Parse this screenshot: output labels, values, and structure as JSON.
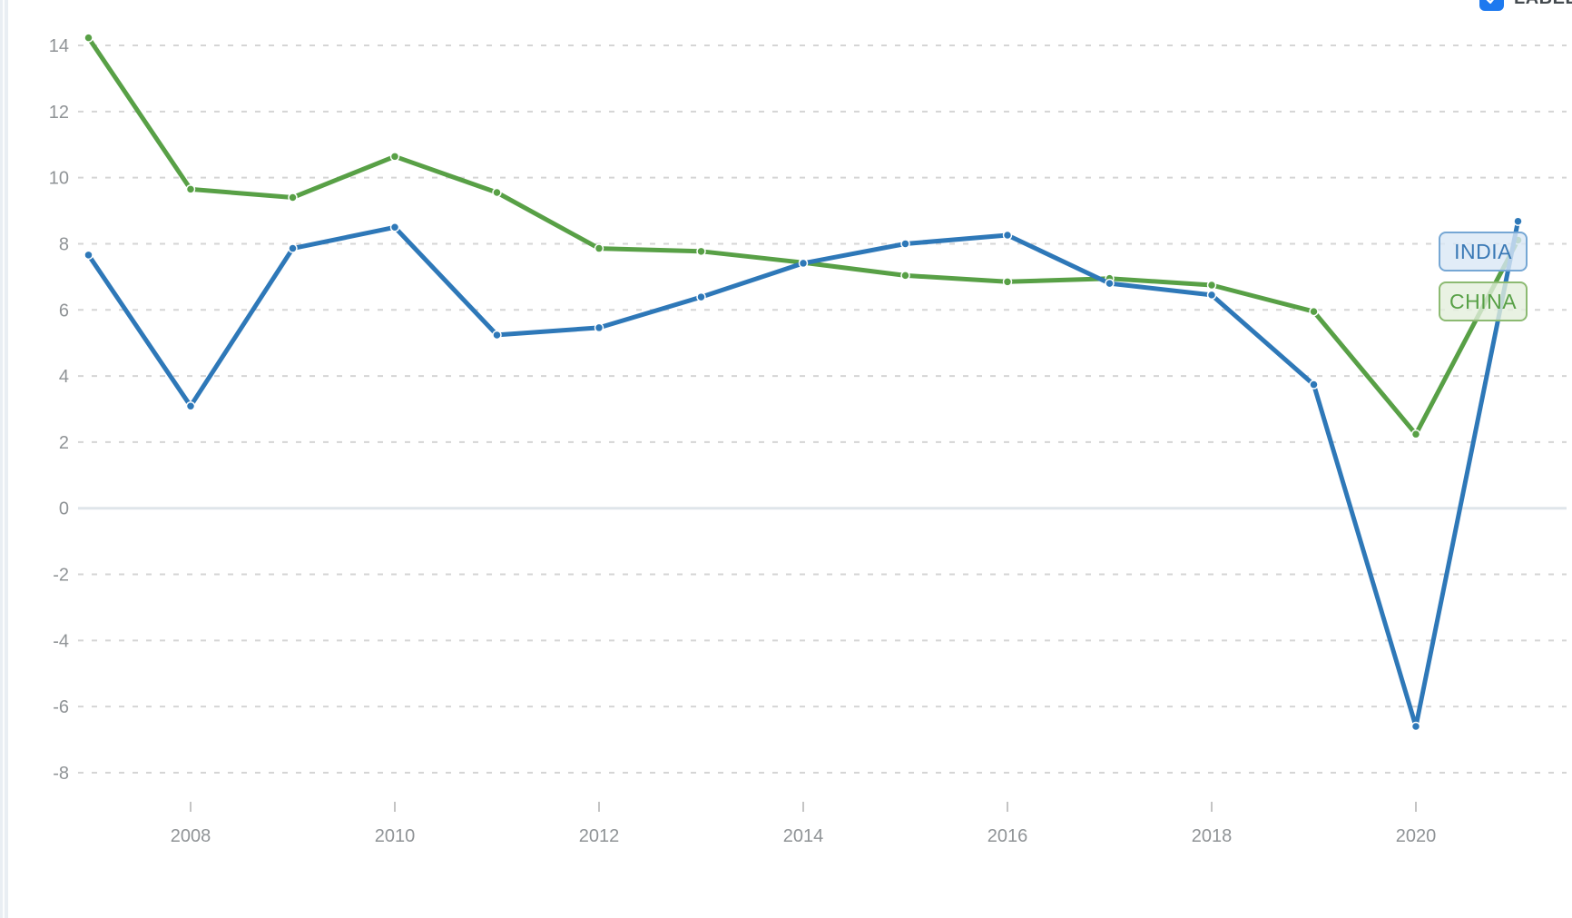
{
  "toolbar": {
    "label_checkbox": {
      "label": "LABEL",
      "checked": true,
      "box_color": "#1d79ef",
      "check_color": "#ffffff"
    }
  },
  "chart_data": {
    "type": "line",
    "title": "",
    "xlabel": "",
    "ylabel": "",
    "x": [
      2007,
      2008,
      2009,
      2010,
      2011,
      2012,
      2013,
      2014,
      2015,
      2016,
      2017,
      2018,
      2019,
      2020,
      2021
    ],
    "series": [
      {
        "name": "INDIA",
        "color": "#2e78b8",
        "values": [
          7.66,
          3.09,
          7.86,
          8.5,
          5.24,
          5.46,
          6.39,
          7.41,
          8.0,
          8.26,
          6.8,
          6.45,
          3.74,
          -6.6,
          8.68
        ]
      },
      {
        "name": "CHINA",
        "color": "#58a046",
        "values": [
          14.23,
          9.65,
          9.4,
          10.64,
          9.55,
          7.86,
          7.77,
          7.43,
          7.04,
          6.85,
          6.95,
          6.75,
          5.95,
          2.24,
          8.11
        ]
      }
    ],
    "ylim": [
      -8,
      14
    ],
    "yticks": [
      14,
      12,
      10,
      8,
      6,
      4,
      2,
      0,
      -2,
      -4,
      -6,
      -8
    ],
    "xticks": [
      2008,
      2010,
      2012,
      2014,
      2016,
      2018,
      2020
    ],
    "grid": "horizontal-dashed",
    "zero_line": "solid",
    "legend_position": "end-of-line-labels",
    "colors": {
      "grid_dashed": "#d5d5d5",
      "zero_line": "#dfe5ea",
      "axis_tick": "#c4c4c4",
      "tick_text": "#8f9396"
    },
    "end_labels": [
      {
        "text": "INDIA",
        "text_color": "#3a79b5",
        "bg": "rgba(217,231,245,0.8)",
        "border": "#76a7d4"
      },
      {
        "text": "CHINA",
        "text_color": "#57a046",
        "bg": "rgba(227,239,220,0.8)",
        "border": "#8cba72"
      }
    ]
  }
}
